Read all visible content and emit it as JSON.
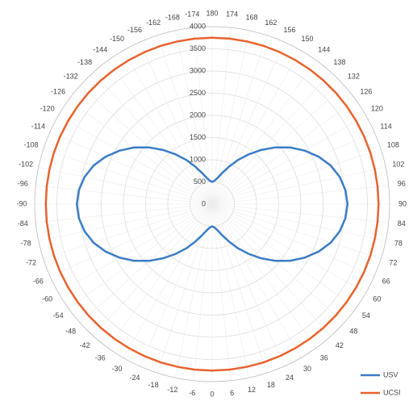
{
  "chart_data": {
    "type": "polar",
    "x": [
      -174,
      -168,
      -162,
      -156,
      -150,
      -144,
      -138,
      -132,
      -126,
      -120,
      -114,
      -108,
      -102,
      -96,
      -90,
      -84,
      -78,
      -72,
      -66,
      -60,
      -54,
      -48,
      -42,
      -36,
      -30,
      -24,
      -18,
      -12,
      -6,
      0,
      6,
      12,
      18,
      24,
      30,
      36,
      42,
      48,
      54,
      60,
      66,
      72,
      78,
      84,
      90,
      96,
      102,
      108,
      114,
      120,
      126,
      132,
      138,
      144,
      150,
      156,
      162,
      168,
      174,
      180
    ],
    "series": [
      {
        "name": "USV",
        "color": "#3b7cc4",
        "values": [
          530,
          610,
          740,
          920,
          1140,
          1380,
          1640,
          1910,
          2170,
          2410,
          2630,
          2810,
          2940,
          3020,
          3050,
          3020,
          2940,
          2810,
          2630,
          2410,
          2170,
          1910,
          1640,
          1380,
          1140,
          920,
          740,
          610,
          530,
          500,
          530,
          610,
          740,
          920,
          1140,
          1380,
          1640,
          1910,
          2170,
          2410,
          2630,
          2810,
          2940,
          3020,
          3050,
          3020,
          2940,
          2810,
          2630,
          2410,
          2170,
          1910,
          1640,
          1380,
          1140,
          920,
          740,
          610,
          530,
          500
        ]
      },
      {
        "name": "UCSI",
        "color": "#e8622c",
        "values": [
          3750,
          3750,
          3750,
          3750,
          3750,
          3750,
          3750,
          3750,
          3750,
          3750,
          3750,
          3750,
          3750,
          3750,
          3750,
          3750,
          3750,
          3750,
          3750,
          3750,
          3750,
          3750,
          3750,
          3750,
          3750,
          3750,
          3750,
          3750,
          3750,
          3750,
          3750,
          3750,
          3750,
          3750,
          3750,
          3750,
          3750,
          3750,
          3750,
          3750,
          3750,
          3750,
          3750,
          3750,
          3750,
          3750,
          3750,
          3750,
          3750,
          3750,
          3750,
          3750,
          3750,
          3750,
          3750,
          3750,
          3750,
          3750,
          3750,
          3750
        ]
      }
    ],
    "xticks": [
      -174,
      -168,
      -162,
      -156,
      -150,
      -144,
      -138,
      -132,
      -126,
      -120,
      -114,
      -108,
      -102,
      -96,
      -90,
      -84,
      -78,
      -72,
      -66,
      -60,
      -54,
      -48,
      -42,
      -36,
      -30,
      -24,
      -18,
      -12,
      -6,
      0,
      6,
      12,
      18,
      24,
      30,
      36,
      42,
      48,
      54,
      60,
      66,
      72,
      78,
      84,
      90,
      96,
      102,
      108,
      114,
      120,
      126,
      132,
      138,
      144,
      150,
      156,
      162,
      168,
      174,
      180
    ],
    "ylim": [
      0,
      4000
    ],
    "yticks": [
      0,
      500,
      1000,
      1500,
      2000,
      2500,
      3000,
      3500,
      4000
    ],
    "grid": true,
    "legend": "bottom-right"
  }
}
